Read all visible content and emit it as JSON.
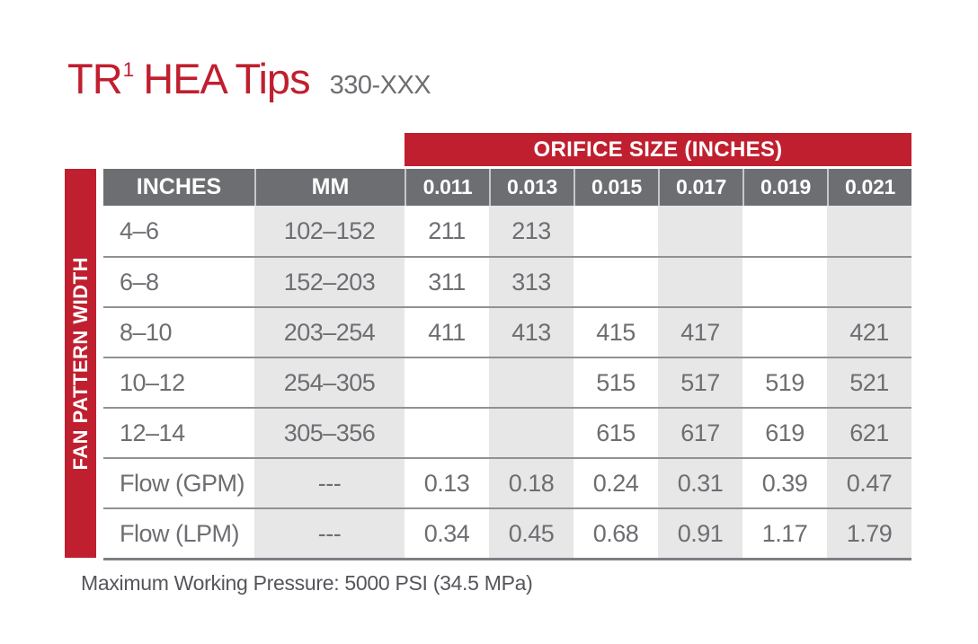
{
  "page": {
    "title_main": "TR",
    "title_sup": "1",
    "title_rest": "HEA Tips",
    "model_code": "330-XXX",
    "footnote": "Maximum Working Pressure: 5000 PSI (34.5 MPa)"
  },
  "table": {
    "band_label": "ORIFICE SIZE (INCHES)",
    "side_label": "FAN PATTERN WIDTH",
    "col_headers": [
      "INCHES",
      "MM",
      "0.011",
      "0.013",
      "0.015",
      "0.017",
      "0.019",
      "0.021"
    ],
    "rows": [
      {
        "label": "4–6",
        "mm": "102–152",
        "values": [
          "211",
          "213",
          "",
          "",
          "",
          ""
        ]
      },
      {
        "label": "6–8",
        "mm": "152–203",
        "values": [
          "311",
          "313",
          "",
          "",
          "",
          ""
        ]
      },
      {
        "label": "8–10",
        "mm": "203–254",
        "values": [
          "411",
          "413",
          "415",
          "417",
          "",
          "421"
        ]
      },
      {
        "label": "10–12",
        "mm": "254–305",
        "values": [
          "",
          "",
          "515",
          "517",
          "519",
          "521"
        ]
      },
      {
        "label": "12–14",
        "mm": "305–356",
        "values": [
          "",
          "",
          "615",
          "617",
          "619",
          "621"
        ]
      },
      {
        "label": "Flow (GPM)",
        "mm": "---",
        "values": [
          "0.13",
          "0.18",
          "0.24",
          "0.31",
          "0.39",
          "0.47"
        ]
      },
      {
        "label": "Flow (LPM)",
        "mm": "---",
        "values": [
          "0.34",
          "0.45",
          "0.68",
          "0.91",
          "1.17",
          "1.79"
        ]
      }
    ]
  },
  "colors": {
    "brand_red": "#C01F2F",
    "header_gray": "#6D6E71",
    "column_shade": "#E7E7E8",
    "body_text": "#6D6E71",
    "row_divider": "#8F9194",
    "footnote_text": "#55565A"
  }
}
